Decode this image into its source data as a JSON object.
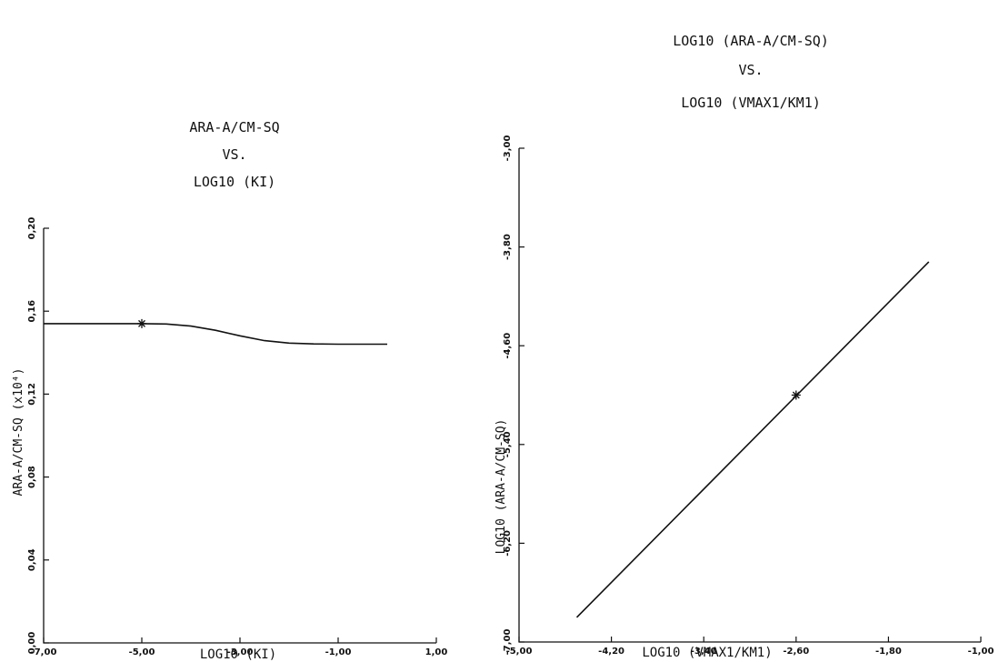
{
  "chart_data": [
    {
      "type": "line",
      "title": [
        "ARA-A/CM-SQ",
        "VS.",
        "LOG10  (KI)"
      ],
      "xlabel": "LOG10  (KI)",
      "ylabel": "ARA-A/CM-SQ  (x10⁴)",
      "xlim": [
        -7.0,
        1.0
      ],
      "ylim": [
        0.0,
        0.2
      ],
      "x_ticks": [
        -7.0,
        -5.0,
        -3.0,
        -1.0,
        1.0
      ],
      "x_tick_labels": [
        "-7,00",
        "-5,00",
        "-3,00",
        "-1,00",
        "1,00"
      ],
      "y_ticks": [
        0.0,
        0.04,
        0.08,
        0.12,
        0.16,
        0.2
      ],
      "y_tick_labels": [
        "0,00",
        "0,04",
        "0,08",
        "0,12",
        "0,16",
        "0,20"
      ],
      "series": [
        {
          "x": [
            -7.0,
            -6.0,
            -5.0,
            -4.5,
            -4.0,
            -3.5,
            -3.0,
            -2.5,
            -2.0,
            -1.5,
            -1.0,
            0.0
          ],
          "y": [
            0.154,
            0.154,
            0.154,
            0.1538,
            0.1528,
            0.1508,
            0.1481,
            0.1458,
            0.1446,
            0.1442,
            0.1441,
            0.1441
          ]
        }
      ],
      "marker": {
        "x": -5.0,
        "y": 0.154,
        "symbol": "*"
      }
    },
    {
      "type": "line",
      "title": [
        "LOG10  (ARA-A/CM-SQ)",
        "VS.",
        "LOG10  (VMAX1/KM1)"
      ],
      "xlabel": "LOG10  (VMAX1/KM1)",
      "ylabel": "LOG10  (ARA-A/CM-SQ)",
      "xlim": [
        -5.0,
        -1.0
      ],
      "ylim": [
        -7.0,
        -3.0
      ],
      "x_ticks": [
        -5.0,
        -4.2,
        -3.4,
        -2.6,
        -1.8,
        -1.0
      ],
      "x_tick_labels": [
        "-5,00",
        "-4,20",
        "-3,40",
        "-2,60",
        "-1,80",
        "-1,00"
      ],
      "y_ticks": [
        -7.0,
        -6.2,
        -5.4,
        -4.6,
        -3.8,
        -3.0
      ],
      "y_tick_labels": [
        "-7,00",
        "-6,20",
        "-5,40",
        "-4,60",
        "-3,80",
        "-3,00"
      ],
      "series": [
        {
          "x": [
            -4.5,
            -1.45
          ],
          "y": [
            -6.8,
            -3.92
          ]
        }
      ],
      "marker": {
        "x": -2.6,
        "y": -5.0,
        "symbol": "*"
      }
    }
  ]
}
